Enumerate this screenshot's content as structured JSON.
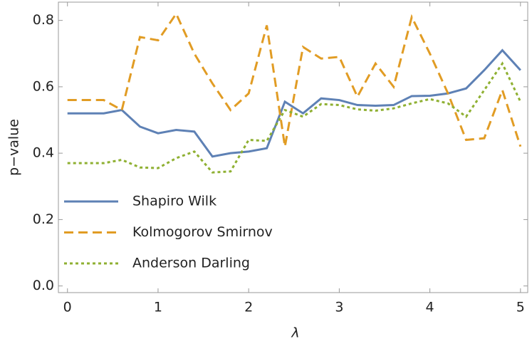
{
  "chart_data": {
    "type": "line",
    "x_label": "λ",
    "y_label": "p−value",
    "x": [
      0,
      0.2,
      0.4,
      0.6,
      0.8,
      1.0,
      1.2,
      1.4,
      1.6,
      1.8,
      2.0,
      2.2,
      2.4,
      2.6,
      2.8,
      3.0,
      3.2,
      3.4,
      3.6,
      3.8,
      4.0,
      4.2,
      4.4,
      4.6,
      4.8,
      5.0
    ],
    "series": [
      {
        "name": "Shapiro Wilk",
        "color": "#5e81b5",
        "dash": "solid",
        "values": [
          0.52,
          0.52,
          0.52,
          0.53,
          0.48,
          0.46,
          0.47,
          0.465,
          0.39,
          0.4,
          0.405,
          0.415,
          0.555,
          0.52,
          0.565,
          0.56,
          0.545,
          0.543,
          0.545,
          0.572,
          0.573,
          0.58,
          0.595,
          0.65,
          0.71,
          0.65
        ]
      },
      {
        "name": "Kolmogorov Smirnov",
        "color": "#e19c24",
        "dash": "dashed",
        "values": [
          0.56,
          0.56,
          0.56,
          0.53,
          0.75,
          0.74,
          0.82,
          0.7,
          0.61,
          0.53,
          0.58,
          0.785,
          0.42,
          0.72,
          0.685,
          0.69,
          0.57,
          0.67,
          0.6,
          0.81,
          0.7,
          0.58,
          0.44,
          0.445,
          0.59,
          0.42
        ]
      },
      {
        "name": "Anderson Darling",
        "color": "#8fb032",
        "dash": "dotted",
        "values": [
          0.37,
          0.37,
          0.37,
          0.38,
          0.357,
          0.355,
          0.385,
          0.405,
          0.342,
          0.345,
          0.44,
          0.437,
          0.53,
          0.51,
          0.548,
          0.545,
          0.532,
          0.528,
          0.535,
          0.55,
          0.563,
          0.55,
          0.51,
          0.59,
          0.67,
          0.555
        ]
      }
    ],
    "xlim": [
      -0.1,
      5.08
    ],
    "ylim": [
      -0.02,
      0.855
    ],
    "xticks": [
      0,
      1,
      2,
      3,
      4,
      5
    ],
    "yticks": [
      {
        "value": 0,
        "label": "0.0"
      },
      0.2,
      0.4,
      0.6,
      0.8
    ],
    "legend": "left"
  }
}
